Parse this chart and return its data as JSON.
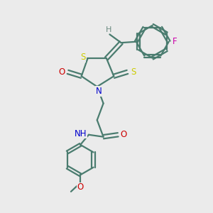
{
  "bg_color": "#ebebeb",
  "bond_color": "#4a7c6f",
  "S_color": "#cccc00",
  "N_color": "#0000cc",
  "O_color": "#cc0000",
  "F_color": "#cc00aa",
  "H_color": "#6a8a80",
  "figsize": [
    3.0,
    3.0
  ],
  "dpi": 100,
  "xlim": [
    0,
    10
  ],
  "ylim": [
    0,
    10
  ]
}
